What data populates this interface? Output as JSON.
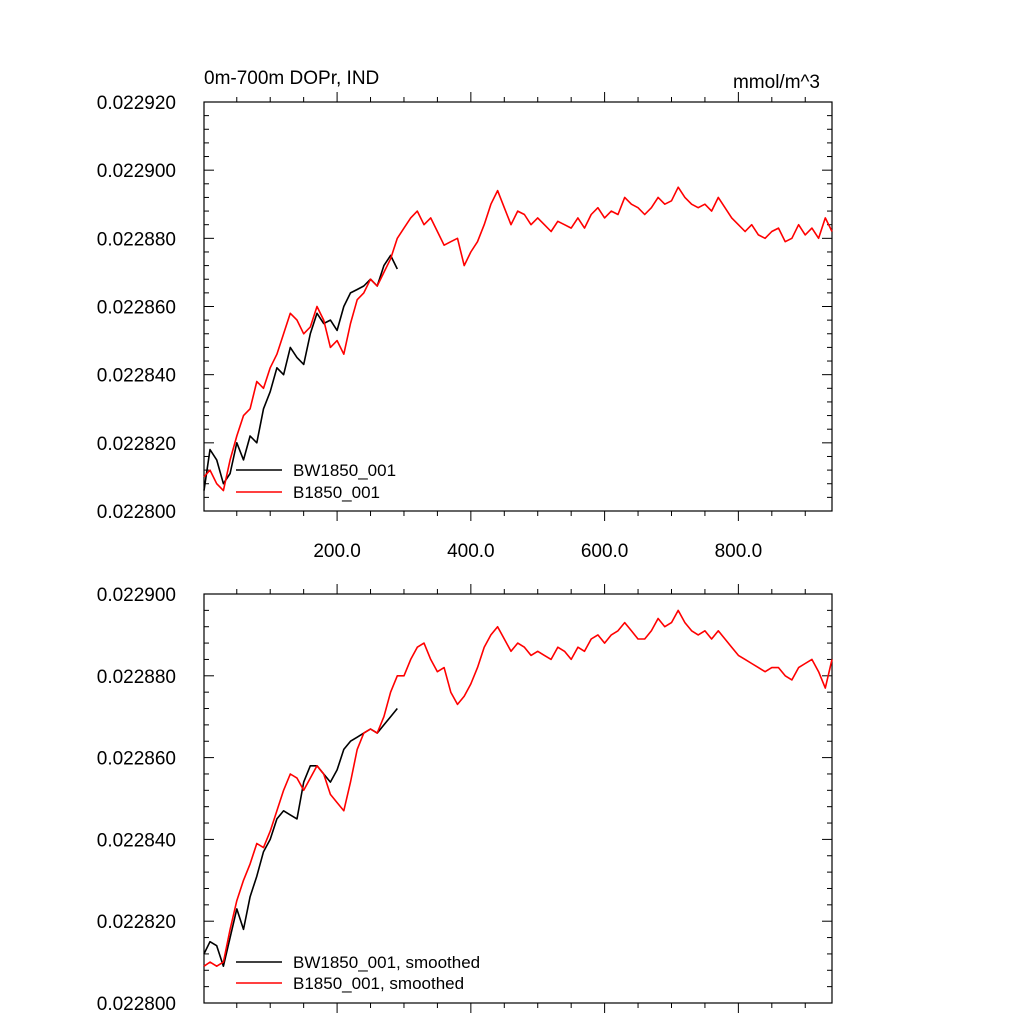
{
  "chart_data": [
    {
      "type": "line",
      "title": "0m-700m DOPr, IND",
      "units": "mmol/m^3",
      "xlim": [
        1,
        940
      ],
      "ylim": [
        0.0228,
        0.02292
      ],
      "xticks": [
        200,
        400,
        600,
        800
      ],
      "xtick_labels": [
        "200.0",
        "400.0",
        "600.0",
        "800.0"
      ],
      "yticks": [
        0.0228,
        0.02282,
        0.02284,
        0.02286,
        0.02288,
        0.0229,
        0.02292
      ],
      "ytick_labels": [
        "0.022800",
        "0.022820",
        "0.022840",
        "0.022860",
        "0.022880",
        "0.022900",
        "0.022920"
      ],
      "grid": false,
      "legend_position": "bottom-left",
      "series": [
        {
          "name": "BW1850_001",
          "color": "#000000",
          "x": [
            1,
            10,
            20,
            30,
            40,
            50,
            60,
            70,
            80,
            90,
            100,
            110,
            120,
            130,
            140,
            150,
            160,
            170,
            180,
            190,
            200,
            210,
            220,
            230,
            240,
            250,
            260,
            270,
            280,
            290
          ],
          "values": [
            0.022806,
            0.022818,
            0.022815,
            0.022808,
            0.022811,
            0.02282,
            0.022815,
            0.022822,
            0.02282,
            0.02283,
            0.022835,
            0.022842,
            0.02284,
            0.022848,
            0.022845,
            0.022843,
            0.022852,
            0.022858,
            0.022855,
            0.022856,
            0.022853,
            0.02286,
            0.022864,
            0.022865,
            0.022866,
            0.022868,
            0.022866,
            0.022872,
            0.022875,
            0.022871
          ]
        },
        {
          "name": "B1850_001",
          "color": "#ff0000",
          "x": [
            1,
            10,
            20,
            30,
            40,
            50,
            60,
            70,
            80,
            90,
            100,
            110,
            120,
            130,
            140,
            150,
            160,
            170,
            180,
            190,
            200,
            210,
            220,
            230,
            240,
            250,
            260,
            270,
            280,
            290,
            300,
            310,
            320,
            330,
            340,
            350,
            360,
            370,
            380,
            390,
            400,
            410,
            420,
            430,
            440,
            450,
            460,
            470,
            480,
            490,
            500,
            510,
            520,
            530,
            540,
            550,
            560,
            570,
            580,
            590,
            600,
            610,
            620,
            630,
            640,
            650,
            660,
            670,
            680,
            690,
            700,
            710,
            720,
            730,
            740,
            750,
            760,
            770,
            780,
            790,
            800,
            810,
            820,
            830,
            840,
            850,
            860,
            870,
            880,
            890,
            900,
            910,
            920,
            930,
            940
          ],
          "values": [
            0.02281,
            0.022812,
            0.022808,
            0.022806,
            0.022815,
            0.022822,
            0.022828,
            0.02283,
            0.022838,
            0.022836,
            0.022842,
            0.022846,
            0.022852,
            0.022858,
            0.022856,
            0.022852,
            0.022854,
            0.02286,
            0.022856,
            0.022848,
            0.02285,
            0.022846,
            0.022855,
            0.022862,
            0.022864,
            0.022868,
            0.022866,
            0.02287,
            0.022874,
            0.02288,
            0.022883,
            0.022886,
            0.022888,
            0.022884,
            0.022886,
            0.022882,
            0.022878,
            0.022879,
            0.02288,
            0.022872,
            0.022876,
            0.022879,
            0.022884,
            0.02289,
            0.022894,
            0.022889,
            0.022884,
            0.022888,
            0.022887,
            0.022884,
            0.022886,
            0.022884,
            0.022882,
            0.022885,
            0.022884,
            0.022883,
            0.022886,
            0.022883,
            0.022887,
            0.022889,
            0.022886,
            0.022888,
            0.022887,
            0.022892,
            0.02289,
            0.022889,
            0.022887,
            0.022889,
            0.022892,
            0.02289,
            0.022891,
            0.022895,
            0.022892,
            0.02289,
            0.022889,
            0.02289,
            0.022888,
            0.022892,
            0.022889,
            0.022886,
            0.022884,
            0.022882,
            0.022884,
            0.022881,
            0.02288,
            0.022882,
            0.022883,
            0.022879,
            0.02288,
            0.022884,
            0.022881,
            0.022883,
            0.02288,
            0.022886,
            0.022882
          ]
        }
      ]
    },
    {
      "type": "line",
      "title": "",
      "xlim": [
        1,
        940
      ],
      "ylim": [
        0.0228,
        0.0229
      ],
      "xticks": [
        200,
        400,
        600,
        800
      ],
      "yticks": [
        0.0228,
        0.02282,
        0.02284,
        0.02286,
        0.02288,
        0.0229
      ],
      "ytick_labels": [
        "0.022800",
        "0.022820",
        "0.022840",
        "0.022860",
        "0.022880",
        "0.022900"
      ],
      "grid": false,
      "legend_position": "bottom-left",
      "series": [
        {
          "name": "BW1850_001, smoothed",
          "color": "#000000",
          "x": [
            1,
            10,
            20,
            30,
            40,
            50,
            60,
            70,
            80,
            90,
            100,
            110,
            120,
            130,
            140,
            150,
            160,
            170,
            180,
            190,
            200,
            210,
            220,
            230,
            240,
            250,
            260,
            270,
            280,
            290
          ],
          "values": [
            0.022812,
            0.022815,
            0.022814,
            0.022809,
            0.022816,
            0.022823,
            0.022818,
            0.022826,
            0.022831,
            0.022837,
            0.02284,
            0.022845,
            0.022847,
            0.022846,
            0.022845,
            0.022854,
            0.022858,
            0.022858,
            0.022856,
            0.022854,
            0.022857,
            0.022862,
            0.022864,
            0.022865,
            0.022866,
            0.022867,
            0.022866,
            0.022868,
            0.02287,
            0.022872
          ]
        },
        {
          "name": "B1850_001, smoothed",
          "color": "#ff0000",
          "x": [
            1,
            10,
            20,
            30,
            40,
            50,
            60,
            70,
            80,
            90,
            100,
            110,
            120,
            130,
            140,
            150,
            160,
            170,
            180,
            190,
            200,
            210,
            220,
            230,
            240,
            250,
            260,
            270,
            280,
            290,
            300,
            310,
            320,
            330,
            340,
            350,
            360,
            370,
            380,
            390,
            400,
            410,
            420,
            430,
            440,
            450,
            460,
            470,
            480,
            490,
            500,
            510,
            520,
            530,
            540,
            550,
            560,
            570,
            580,
            590,
            600,
            610,
            620,
            630,
            640,
            650,
            660,
            670,
            680,
            690,
            700,
            710,
            720,
            730,
            740,
            750,
            760,
            770,
            780,
            790,
            800,
            810,
            820,
            830,
            840,
            850,
            860,
            870,
            880,
            890,
            900,
            910,
            920,
            930,
            940
          ],
          "values": [
            0.022809,
            0.02281,
            0.022809,
            0.02281,
            0.022818,
            0.022825,
            0.02283,
            0.022834,
            0.022839,
            0.022838,
            0.022842,
            0.022847,
            0.022852,
            0.022856,
            0.022855,
            0.022852,
            0.022855,
            0.022858,
            0.022856,
            0.022851,
            0.022849,
            0.022847,
            0.022854,
            0.022862,
            0.022866,
            0.022867,
            0.022866,
            0.02287,
            0.022876,
            0.02288,
            0.02288,
            0.022884,
            0.022887,
            0.022888,
            0.022884,
            0.022881,
            0.022882,
            0.022876,
            0.022873,
            0.022875,
            0.022878,
            0.022882,
            0.022887,
            0.02289,
            0.022892,
            0.022889,
            0.022886,
            0.022888,
            0.022887,
            0.022885,
            0.022886,
            0.022885,
            0.022884,
            0.022887,
            0.022886,
            0.022884,
            0.022887,
            0.022886,
            0.022889,
            0.02289,
            0.022888,
            0.02289,
            0.022891,
            0.022893,
            0.022891,
            0.022889,
            0.022889,
            0.022891,
            0.022894,
            0.022892,
            0.022893,
            0.022896,
            0.022893,
            0.022891,
            0.02289,
            0.022891,
            0.022889,
            0.022891,
            0.022889,
            0.022887,
            0.022885,
            0.022884,
            0.022883,
            0.022882,
            0.022881,
            0.022882,
            0.022882,
            0.02288,
            0.022879,
            0.022882,
            0.022883,
            0.022884,
            0.022881,
            0.022877,
            0.022884
          ]
        }
      ]
    }
  ]
}
